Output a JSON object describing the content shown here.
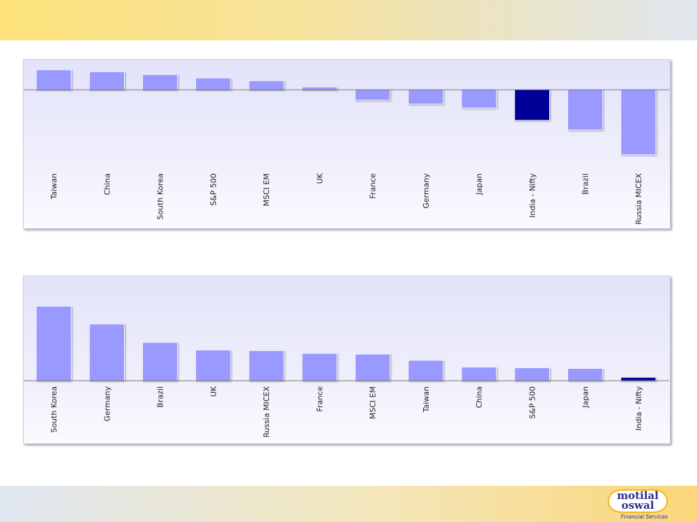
{
  "chart_data": [
    {
      "type": "bar",
      "title": "",
      "xlabel": "",
      "ylabel": "",
      "categories": [
        "Taiwan",
        "China",
        "South Korea",
        "S&P 500",
        "MSCI EM",
        "UK",
        "France",
        "Germany",
        "Japan",
        "India - Nifty",
        "Brazil",
        "Russia MICEX"
      ],
      "values": [
        10.5,
        9.5,
        8,
        6.2,
        4.8,
        1.5,
        -5.5,
        -7.5,
        -9.5,
        -16,
        -21,
        -34
      ],
      "highlight": "India - Nifty",
      "ylim": [
        -36,
        12
      ],
      "grid": false,
      "tick_labels_y": false,
      "colors": {
        "bar": "#9999ff",
        "highlight": "#000099"
      }
    },
    {
      "type": "bar",
      "title": "",
      "xlabel": "",
      "ylabel": "",
      "categories": [
        "South Korea",
        "Germany",
        "Brazil",
        "UK",
        "Russia MICEX",
        "France",
        "MSCI EM",
        "Taiwan",
        "China",
        "S&P 500",
        "Japan",
        "India - Nifty"
      ],
      "values": [
        109,
        83,
        56,
        45,
        44,
        40,
        39,
        30,
        20,
        19,
        18,
        5
      ],
      "highlight": "India - Nifty",
      "ylim": [
        0,
        120
      ],
      "grid": false,
      "tick_labels_y": false,
      "colors": {
        "bar": "#9999ff",
        "highlight": "#000099"
      }
    }
  ],
  "logo": {
    "line1": "motilal",
    "line2": "oswal",
    "tagline": "Financial Services"
  }
}
